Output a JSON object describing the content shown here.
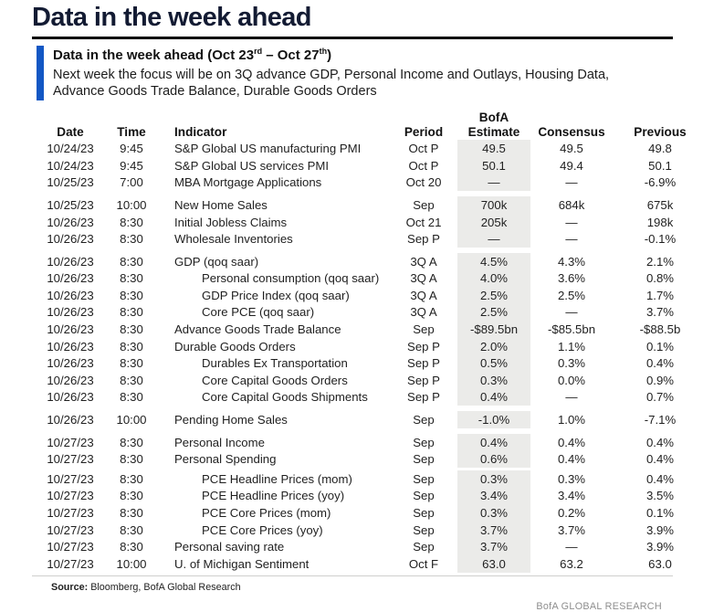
{
  "page_title": "Data in the week ahead",
  "callout": {
    "heading_prefix": "Data in the week ahead (Oct 23",
    "heading_sup1": "rd",
    "heading_mid": " – Oct 27",
    "heading_sup2": "th",
    "heading_suffix": ")",
    "body": "Next week the focus will be on 3Q advance GDP, Personal Income and Outlays, Housing Data, Advance Goods Trade Balance, Durable Goods Orders"
  },
  "table": {
    "headers": {
      "date": "Date",
      "time": "Time",
      "indicator": "Indicator",
      "period": "Period",
      "estimate_line1": "BofA",
      "estimate_line2": "Estimate",
      "consensus": "Consensus",
      "previous": "Previous"
    },
    "rows": [
      {
        "date": "10/24/23",
        "time": "9:45",
        "indicator": "S&P Global US manufacturing PMI",
        "indent": false,
        "period": "Oct P",
        "estimate": "49.5",
        "consensus": "49.5",
        "previous": "49.8",
        "gap_after": false
      },
      {
        "date": "10/24/23",
        "time": "9:45",
        "indicator": "S&P Global US services PMI",
        "indent": false,
        "period": "Oct P",
        "estimate": "50.1",
        "consensus": "49.4",
        "previous": "50.1",
        "gap_after": false
      },
      {
        "date": "10/25/23",
        "time": "7:00",
        "indicator": "MBA Mortgage Applications",
        "indent": false,
        "period": "Oct 20",
        "estimate": "—",
        "consensus": "—",
        "previous": "-6.9%",
        "gap_after": true
      },
      {
        "date": "10/25/23",
        "time": "10:00",
        "indicator": "New Home Sales",
        "indent": false,
        "period": "Sep",
        "estimate": "700k",
        "consensus": "684k",
        "previous": "675k",
        "gap_after": false
      },
      {
        "date": "10/26/23",
        "time": "8:30",
        "indicator": "Initial Jobless Claims",
        "indent": false,
        "period": "Oct 21",
        "estimate": "205k",
        "consensus": "—",
        "previous": "198k",
        "gap_after": false
      },
      {
        "date": "10/26/23",
        "time": "8:30",
        "indicator": "Wholesale Inventories",
        "indent": false,
        "period": "Sep P",
        "estimate": "—",
        "consensus": "—",
        "previous": "-0.1%",
        "gap_after": true
      },
      {
        "date": "10/26/23",
        "time": "8:30",
        "indicator": "GDP (qoq saar)",
        "indent": false,
        "period": "3Q A",
        "estimate": "4.5%",
        "consensus": "4.3%",
        "previous": "2.1%",
        "gap_after": false
      },
      {
        "date": "10/26/23",
        "time": "8:30",
        "indicator": "Personal consumption (qoq saar)",
        "indent": true,
        "period": "3Q A",
        "estimate": "4.0%",
        "consensus": "3.6%",
        "previous": "0.8%",
        "gap_after": false
      },
      {
        "date": "10/26/23",
        "time": "8:30",
        "indicator": "GDP Price Index (qoq saar)",
        "indent": true,
        "period": "3Q A",
        "estimate": "2.5%",
        "consensus": "2.5%",
        "previous": "1.7%",
        "gap_after": false
      },
      {
        "date": "10/26/23",
        "time": "8:30",
        "indicator": "Core PCE (qoq saar)",
        "indent": true,
        "period": "3Q A",
        "estimate": "2.5%",
        "consensus": "—",
        "previous": "3.7%",
        "gap_after": false
      },
      {
        "date": "10/26/23",
        "time": "8:30",
        "indicator": "Advance Goods Trade Balance",
        "indent": false,
        "period": "Sep",
        "estimate": "-$89.5bn",
        "consensus": "-$85.5bn",
        "previous": "-$88.5b",
        "gap_after": false
      },
      {
        "date": "10/26/23",
        "time": "8:30",
        "indicator": "Durable Goods Orders",
        "indent": false,
        "period": "Sep P",
        "estimate": "2.0%",
        "consensus": "1.1%",
        "previous": "0.1%",
        "gap_after": false
      },
      {
        "date": "10/26/23",
        "time": "8:30",
        "indicator": "Durables Ex Transportation",
        "indent": true,
        "period": "Sep P",
        "estimate": "0.5%",
        "consensus": "0.3%",
        "previous": "0.4%",
        "gap_after": false
      },
      {
        "date": "10/26/23",
        "time": "8:30",
        "indicator": "Core Capital Goods Orders",
        "indent": true,
        "period": "Sep P",
        "estimate": "0.3%",
        "consensus": "0.0%",
        "previous": "0.9%",
        "gap_after": false
      },
      {
        "date": "10/26/23",
        "time": "8:30",
        "indicator": "Core Capital Goods Shipments",
        "indent": true,
        "period": "Sep P",
        "estimate": "0.4%",
        "consensus": "—",
        "previous": "0.7%",
        "gap_after": true
      },
      {
        "date": "10/26/23",
        "time": "10:00",
        "indicator": "Pending Home Sales",
        "indent": false,
        "period": "Sep",
        "estimate": "-1.0%",
        "consensus": "1.0%",
        "previous": "-7.1%",
        "gap_after": true
      },
      {
        "date": "10/27/23",
        "time": "8:30",
        "indicator": "Personal Income",
        "indent": false,
        "period": "Sep",
        "estimate": "0.4%",
        "consensus": "0.4%",
        "previous": "0.4%",
        "gap_after": false
      },
      {
        "date": "10/27/23",
        "time": "8:30",
        "indicator": "Personal Spending",
        "indent": false,
        "period": "Sep",
        "estimate": "0.6%",
        "consensus": "0.4%",
        "previous": "0.4%",
        "gap_small": true
      },
      {
        "date": "10/27/23",
        "time": "8:30",
        "indicator": "PCE Headline Prices (mom)",
        "indent": true,
        "period": "Sep",
        "estimate": "0.3%",
        "consensus": "0.3%",
        "previous": "0.4%",
        "gap_after": false
      },
      {
        "date": "10/27/23",
        "time": "8:30",
        "indicator": "PCE Headline Prices (yoy)",
        "indent": true,
        "period": "Sep",
        "estimate": "3.4%",
        "consensus": "3.4%",
        "previous": "3.5%",
        "gap_after": false
      },
      {
        "date": "10/27/23",
        "time": "8:30",
        "indicator": "PCE Core Prices (mom)",
        "indent": true,
        "period": "Sep",
        "estimate": "0.3%",
        "consensus": "0.2%",
        "previous": "0.1%",
        "gap_after": false
      },
      {
        "date": "10/27/23",
        "time": "8:30",
        "indicator": "PCE Core Prices (yoy)",
        "indent": true,
        "period": "Sep",
        "estimate": "3.7%",
        "consensus": "3.7%",
        "previous": "3.9%",
        "gap_after": false
      },
      {
        "date": "10/27/23",
        "time": "8:30",
        "indicator": "Personal saving rate",
        "indent": false,
        "period": "Sep",
        "estimate": "3.7%",
        "consensus": "—",
        "previous": "3.9%",
        "gap_after": false
      },
      {
        "date": "10/27/23",
        "time": "10:00",
        "indicator": "U. of Michigan Sentiment",
        "indent": false,
        "period": "Oct F",
        "estimate": "63.0",
        "consensus": "63.2",
        "previous": "63.0",
        "gap_after": false
      }
    ]
  },
  "footer": {
    "source_label": "Source:",
    "source_text": " Bloomberg, BofA Global Research",
    "brand": "BofA GLOBAL RESEARCH"
  },
  "colors": {
    "accent_blue": "#1257c4",
    "title_navy": "#131b33",
    "estimate_shade": "#ebebe9",
    "brand_gray": "#8e8e8e"
  }
}
